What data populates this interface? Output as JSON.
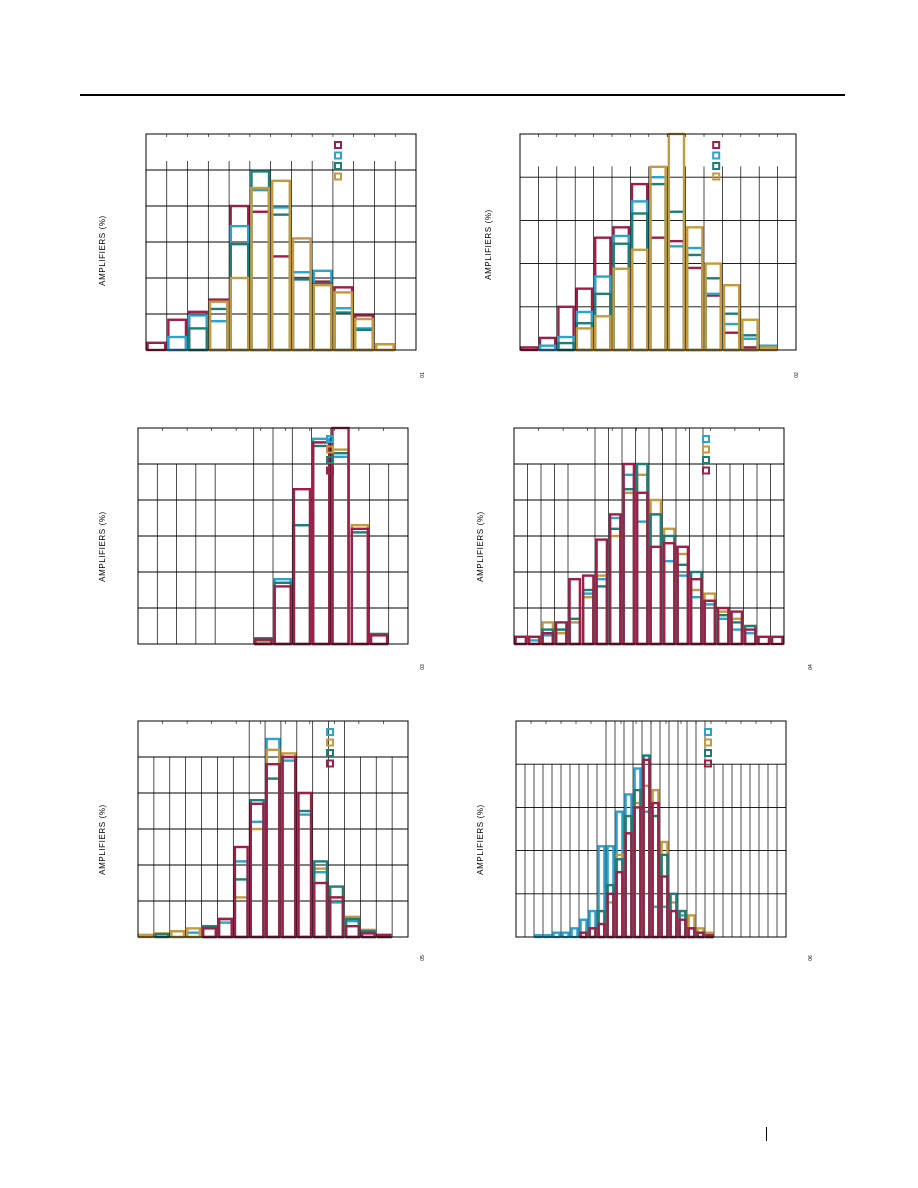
{
  "colors": {
    "crimson": "#9c1f48",
    "cyan": "#2aa3cf",
    "teal": "#1c7f77",
    "gold": "#c59a3e"
  },
  "chart_data": [
    {
      "id": "p1",
      "type": "bar",
      "style": "overlaid-step-histogram",
      "ylabel": "AMPLIFIERS (%)",
      "figure_tag": "01",
      "legend_order": [
        "crimson",
        "cyan",
        "teal",
        "gold"
      ],
      "legend_placement": "top-right",
      "ylim": [
        0,
        30
      ],
      "yticks": 6,
      "xlim": [
        0,
        13
      ],
      "xgrid_hi": [
        1,
        2,
        3,
        4,
        5,
        6,
        7,
        8,
        9,
        10,
        11,
        12
      ],
      "xgrid_lo": [],
      "xgrid_full": [],
      "series": [
        {
          "color": "crimson",
          "values": [
            1,
            4.2,
            5.3,
            7.0,
            20.0,
            19.2,
            13.0,
            10.0,
            9.5,
            8.7,
            4.8,
            0.8
          ]
        },
        {
          "color": "cyan",
          "values": [
            0,
            1.8,
            4.8,
            4.0,
            17.2,
            22.2,
            19.8,
            10.8,
            11.0,
            5.8,
            3.0,
            0
          ]
        },
        {
          "color": "teal",
          "values": [
            0,
            0,
            3.0,
            5.7,
            14.7,
            24.8,
            18.8,
            9.8,
            9.2,
            5.2,
            2.8,
            0
          ]
        },
        {
          "color": "gold",
          "values": [
            0,
            0,
            0,
            6.7,
            10.0,
            22.5,
            23.5,
            15.5,
            9.0,
            8.0,
            4.3,
            0.8
          ]
        }
      ]
    },
    {
      "id": "p2",
      "type": "bar",
      "style": "overlaid-step-histogram",
      "ylabel": "AMPLIFIERS (%)",
      "figure_tag": "02",
      "legend_order": [
        "crimson",
        "cyan",
        "teal",
        "gold"
      ],
      "legend_placement": "top-right",
      "ylim": [
        0,
        25
      ],
      "yticks": 5,
      "xlim": [
        0,
        15
      ],
      "xgrid_hi": [
        1,
        2,
        3,
        4,
        5,
        6,
        7,
        8,
        9,
        10,
        11,
        12,
        13,
        14
      ],
      "xgrid_lo": [],
      "xgrid_full": [],
      "series": [
        {
          "color": "crimson",
          "values": [
            0.3,
            1.4,
            5.0,
            7.1,
            13.0,
            14.2,
            19.2,
            13.0,
            12.6,
            9.5,
            6.3,
            2.0,
            0.3,
            0
          ]
        },
        {
          "color": "cyan",
          "values": [
            0,
            0.5,
            1.5,
            4.4,
            8.5,
            13.2,
            17.2,
            20.0,
            12.0,
            11.8,
            6.5,
            3.0,
            1.3,
            0.5
          ]
        },
        {
          "color": "teal",
          "values": [
            0,
            0,
            0.8,
            3.1,
            6.5,
            12.3,
            15.8,
            19.2,
            16.0,
            11.0,
            8.3,
            4.2,
            1.7,
            0
          ]
        },
        {
          "color": "gold",
          "values": [
            0,
            0,
            0,
            2.5,
            3.9,
            9.4,
            11.6,
            21.2,
            25.0,
            14.2,
            10.0,
            7.5,
            3.5,
            0.3
          ]
        }
      ]
    },
    {
      "id": "p3",
      "type": "bar",
      "style": "overlaid-step-histogram",
      "ylabel": "AMPLIFIERS (%)",
      "figure_tag": "03",
      "legend_order": [
        "cyan",
        "gold",
        "teal",
        "crimson"
      ],
      "legend_placement": "top-right",
      "ylim": [
        0,
        30
      ],
      "yticks": 6,
      "xlim": [
        0,
        14
      ],
      "xgrid_hi": [],
      "xgrid_lo": [
        1,
        2,
        3,
        4,
        12,
        13
      ],
      "xgrid_full": [
        6,
        7,
        8,
        9,
        10
      ],
      "series": [
        {
          "color": "cyan",
          "values": [
            0,
            0,
            0,
            0,
            0,
            0,
            0.4,
            9.0,
            16.5,
            28.5,
            26.0,
            0,
            0,
            0
          ]
        },
        {
          "color": "gold",
          "values": [
            0,
            0,
            0,
            0,
            0,
            0,
            0.4,
            8.5,
            16.5,
            28.0,
            27.0,
            16.5,
            0,
            0
          ]
        },
        {
          "color": "teal",
          "values": [
            0,
            0,
            0,
            0,
            0,
            0,
            0.8,
            8.5,
            16.5,
            27.5,
            26.5,
            15.5,
            1.4,
            0
          ]
        },
        {
          "color": "crimson",
          "values": [
            0,
            0,
            0,
            0,
            0,
            0,
            0.6,
            8.0,
            21.5,
            28.0,
            30.0,
            16.0,
            1.2,
            0
          ]
        }
      ]
    },
    {
      "id": "p4",
      "type": "bar",
      "style": "overlaid-step-histogram",
      "ylabel": "AMPLIFIERS (%)",
      "figure_tag": "04",
      "legend_order": [
        "cyan",
        "gold",
        "teal",
        "crimson"
      ],
      "legend_placement": "top-right",
      "ylim": [
        0,
        30
      ],
      "yticks": 6,
      "xlim": [
        0,
        20
      ],
      "xgrid_hi": [],
      "xgrid_lo": [
        1,
        2,
        3,
        4,
        15,
        16,
        17,
        18,
        19
      ],
      "xgrid_full": [
        6,
        7,
        8,
        9,
        10,
        11,
        12,
        13,
        14
      ],
      "series": [
        {
          "color": "cyan",
          "values": [
            1.0,
            0.5,
            1.2,
            2.0,
            3.0,
            7.0,
            9.0,
            17.5,
            23.5,
            17.0,
            18.0,
            11.5,
            9.5,
            6.5,
            5.5,
            3.5,
            2.0,
            1.5,
            0,
            0
          ]
        },
        {
          "color": "gold",
          "values": [
            0,
            1.0,
            3.0,
            1.5,
            3.0,
            6.5,
            9.5,
            15.0,
            21.0,
            23.5,
            20.0,
            16.0,
            12.5,
            7.5,
            7.0,
            4.5,
            3.5,
            2.5,
            0,
            0
          ]
        },
        {
          "color": "teal",
          "values": [
            0,
            0,
            2.0,
            2.0,
            3.5,
            7.5,
            8.0,
            16.0,
            21.5,
            25.0,
            18.0,
            15.0,
            11.0,
            10.0,
            6.0,
            4.0,
            3.0,
            2.5,
            0,
            0
          ]
        },
        {
          "color": "crimson",
          "values": [
            1.0,
            1.0,
            1.5,
            3.0,
            9.0,
            9.5,
            14.5,
            18.0,
            25.0,
            21.0,
            13.5,
            14.0,
            13.5,
            9.0,
            6.0,
            5.0,
            4.5,
            2.0,
            1.0,
            1.0
          ]
        }
      ]
    },
    {
      "id": "p5",
      "type": "bar",
      "style": "overlaid-step-histogram",
      "ylabel": "AMPLIFIERS (%)",
      "figure_tag": "05",
      "legend_order": [
        "cyan",
        "gold",
        "teal",
        "crimson"
      ],
      "legend_placement": "top-right",
      "ylim": [
        0,
        30
      ],
      "yticks": 6,
      "xlim": [
        0,
        17
      ],
      "xgrid_hi": [],
      "xgrid_lo": [
        1,
        2,
        3,
        4,
        5,
        6,
        14,
        15,
        16
      ],
      "xgrid_full": [
        7,
        8,
        9,
        10,
        11,
        12,
        13
      ],
      "series": [
        {
          "color": "cyan",
          "values": [
            0,
            0,
            0.8,
            0.6,
            1.5,
            2.0,
            10.5,
            16.0,
            27.5,
            24.5,
            17.0,
            9.0,
            4.8,
            2.2,
            0.6,
            0.2,
            0
          ]
        },
        {
          "color": "gold",
          "values": [
            0.3,
            0.5,
            0.8,
            1.2,
            1.5,
            2.5,
            5.5,
            15.0,
            26.0,
            25.5,
            20.0,
            9.5,
            5.5,
            2.8,
            1.0,
            0.2,
            0
          ]
        },
        {
          "color": "teal",
          "values": [
            0,
            0.4,
            0,
            0,
            1.5,
            2.5,
            8.0,
            19.0,
            22.0,
            25.0,
            17.5,
            10.5,
            7.0,
            2.5,
            0.8,
            0,
            0
          ]
        },
        {
          "color": "crimson",
          "values": [
            0,
            0,
            0,
            0,
            1.2,
            2.5,
            12.5,
            18.5,
            24.0,
            25.0,
            20.0,
            7.5,
            5.5,
            1.5,
            0.5,
            0.3,
            0
          ]
        }
      ]
    },
    {
      "id": "p6",
      "type": "bar",
      "style": "overlaid-step-histogram",
      "ylabel": "AMPLIFIERS (%)",
      "figure_tag": "06",
      "legend_order": [
        "cyan",
        "gold",
        "teal",
        "crimson"
      ],
      "legend_placement": "top-right",
      "ylim": [
        0,
        25
      ],
      "yticks": 5,
      "xlim": [
        0,
        30
      ],
      "xgrid_hi": [],
      "xgrid_lo": [
        1,
        2,
        3,
        4,
        5,
        6,
        7,
        8,
        9,
        22,
        23,
        24,
        25,
        26,
        27,
        28,
        29
      ],
      "xgrid_full": [
        10,
        11,
        12,
        13,
        14,
        15,
        16,
        17,
        18,
        19,
        20,
        21
      ],
      "series": [
        {
          "color": "cyan",
          "values": [
            0,
            0,
            0.2,
            0.2,
            0.5,
            0.5,
            1.0,
            2.0,
            3.0,
            10.5,
            10.5,
            14.5,
            16.5,
            19.5,
            14.5,
            3.5,
            3.5,
            3.0,
            2.5,
            1.0,
            0.5,
            0.3,
            0,
            0,
            0,
            0,
            0,
            0,
            0,
            0
          ]
        },
        {
          "color": "gold",
          "values": [
            0,
            0,
            0,
            0,
            0,
            0,
            0,
            0.5,
            1.0,
            3.0,
            4.0,
            9.5,
            12.0,
            15.5,
            17.5,
            17.0,
            11.0,
            4.0,
            3.0,
            2.5,
            1.0,
            0.5,
            0,
            0,
            0,
            0,
            0,
            0,
            0,
            0
          ]
        },
        {
          "color": "teal",
          "values": [
            0,
            0,
            0,
            0,
            0,
            0,
            0,
            0.5,
            1.0,
            3.0,
            6.0,
            9.0,
            14.0,
            17.0,
            21.0,
            14.0,
            9.5,
            5.0,
            3.0,
            1.0,
            0.5,
            0.2,
            0,
            0,
            0,
            0,
            0,
            0,
            0,
            0
          ]
        },
        {
          "color": "crimson",
          "values": [
            0,
            0,
            0,
            0,
            0,
            0,
            0,
            0.5,
            1.0,
            1.5,
            5.0,
            7.5,
            12.0,
            15.0,
            20.5,
            15.5,
            7.0,
            3.0,
            2.0,
            1.0,
            0.5,
            0.2,
            0,
            0,
            0,
            0,
            0,
            0,
            0,
            0
          ]
        }
      ]
    }
  ]
}
